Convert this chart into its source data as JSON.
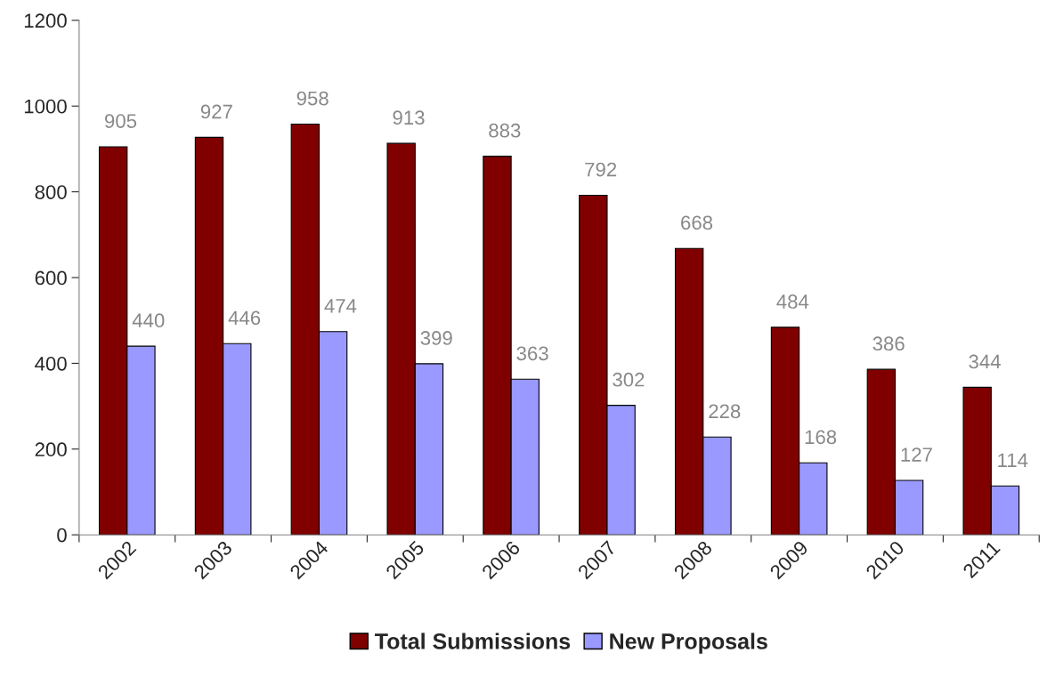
{
  "chart_data": {
    "type": "bar",
    "categories": [
      "2002",
      "2003",
      "2004",
      "2005",
      "2006",
      "2007",
      "2008",
      "2009",
      "2010",
      "2011"
    ],
    "series": [
      {
        "name": "Total Submissions",
        "color": "#800000",
        "values": [
          905,
          927,
          958,
          913,
          883,
          792,
          668,
          484,
          386,
          344
        ]
      },
      {
        "name": "New Proposals",
        "color": "#9999ff",
        "values": [
          440,
          446,
          474,
          399,
          363,
          302,
          228,
          168,
          127,
          114
        ]
      }
    ],
    "ylim": [
      0,
      1200
    ],
    "yticks": [
      0,
      200,
      400,
      600,
      800,
      1000,
      1200
    ],
    "data_labels": true,
    "grid": false,
    "legend": "bottom"
  }
}
